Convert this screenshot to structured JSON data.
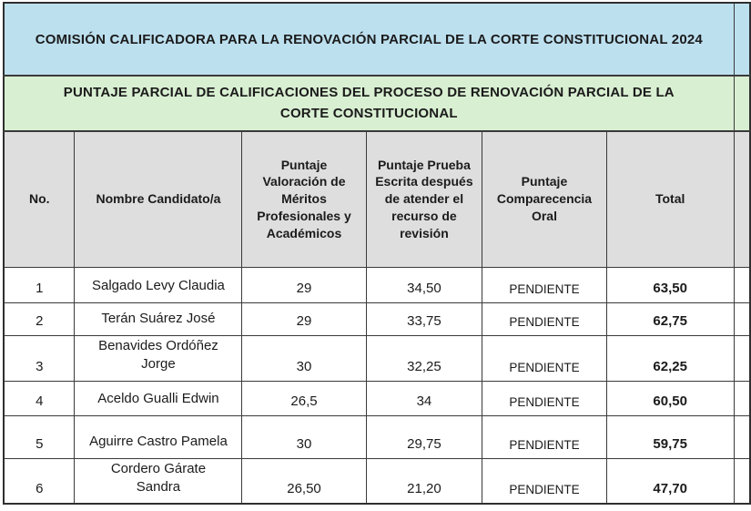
{
  "banner": {
    "title": "COMISIÓN CALIFICADORA PARA LA RENOVACIÓN PARCIAL DE LA CORTE CONSTITUCIONAL 2024",
    "background": "#bde0ef"
  },
  "subbanner": {
    "title": "PUNTAJE PARCIAL DE CALIFICACIONES DEL PROCESO DE RENOVACIÓN PARCIAL DE LA CORTE CONSTITUCIONAL",
    "background": "#d9efd2"
  },
  "table": {
    "header_background": "#dedede",
    "border_color": "#333333",
    "columns": [
      {
        "key": "no",
        "label": "No."
      },
      {
        "key": "nombre",
        "label": "Nombre Candidato/a"
      },
      {
        "key": "meritos",
        "label": "Puntaje Valoración de Méritos Profesionales y Académicos"
      },
      {
        "key": "escrita",
        "label": "Puntaje Prueba Escrita después de atender el recurso de revisión"
      },
      {
        "key": "oral",
        "label": "Puntaje Comparecencia Oral"
      },
      {
        "key": "total",
        "label": "Total"
      }
    ],
    "rows": [
      {
        "no": "1",
        "nombre": "Salgado Levy Claudia",
        "meritos": "29",
        "escrita": "34,50",
        "oral": "PENDIENTE",
        "total": "63,50"
      },
      {
        "no": "2",
        "nombre": "Terán Suárez José",
        "meritos": "29",
        "escrita": "33,75",
        "oral": "PENDIENTE",
        "total": "62,75"
      },
      {
        "no": "3",
        "nombre": "Benavides Ordóñez Jorge",
        "meritos": "30",
        "escrita": "32,25",
        "oral": "PENDIENTE",
        "total": "62,25"
      },
      {
        "no": "4",
        "nombre": "Aceldo Gualli Edwin",
        "meritos": "26,5",
        "escrita": "34",
        "oral": "PENDIENTE",
        "total": "60,50"
      },
      {
        "no": "5",
        "nombre": "Aguirre Castro Pamela",
        "meritos": "30",
        "escrita": "29,75",
        "oral": "PENDIENTE",
        "total": "59,75"
      },
      {
        "no": "6",
        "nombre": "Cordero Gárate Sandra",
        "meritos": "26,50",
        "escrita": "21,20",
        "oral": "PENDIENTE",
        "total": "47,70"
      }
    ]
  }
}
